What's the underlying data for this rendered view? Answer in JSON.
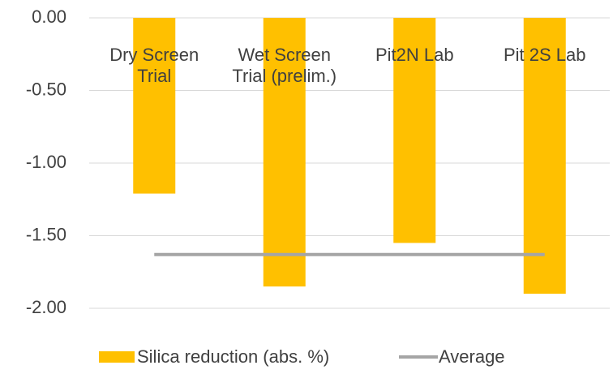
{
  "chart_data": {
    "type": "bar",
    "categories": [
      "Dry Screen Trial",
      "Wet Screen Trial (prelim.)",
      "Pit2N Lab",
      "Pit 2S Lab"
    ],
    "series": [
      {
        "name": "Silica reduction (abs. %)",
        "color": "#FFC000",
        "type": "bar",
        "values": [
          -1.21,
          -1.85,
          -1.55,
          -1.9
        ]
      },
      {
        "name": "Average",
        "color": "#A5A5A5",
        "type": "line",
        "values": [
          -1.63,
          -1.63,
          -1.63,
          -1.63
        ]
      }
    ],
    "ylim": [
      -2,
      0
    ],
    "yticks": [
      {
        "value": 0,
        "label": "0.00"
      },
      {
        "value": -0.5,
        "label": "-0.50"
      },
      {
        "value": -1,
        "label": "-1.00"
      },
      {
        "value": -1.5,
        "label": "-1.50"
      },
      {
        "value": -2,
        "label": "-2.00"
      }
    ],
    "grid": true,
    "legend": "bottom"
  }
}
